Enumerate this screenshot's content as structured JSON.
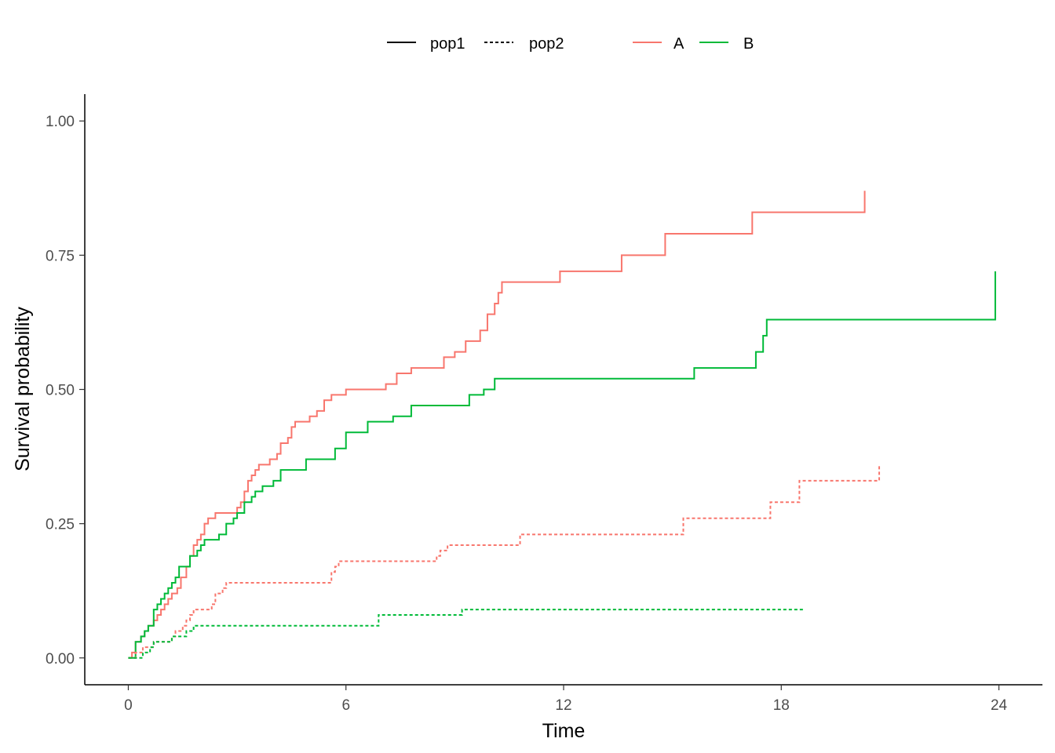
{
  "chart_data": {
    "type": "line",
    "title": "",
    "xlabel": "Time",
    "ylabel": "Survival probability",
    "xlim": [
      -1.2,
      25.2
    ],
    "ylim": [
      -0.05,
      1.05
    ],
    "x_ticks": [
      0,
      6,
      12,
      18,
      24
    ],
    "x_tick_labels": [
      "0",
      "6",
      "12",
      "18",
      "24"
    ],
    "y_ticks": [
      0,
      0.25,
      0.5,
      0.75,
      1.0
    ],
    "y_tick_labels": [
      "0.00",
      "0.25",
      "0.50",
      "0.75",
      "1.00"
    ],
    "grid": false,
    "legend": {
      "position": "top",
      "linetype_entries": [
        {
          "label": "pop1",
          "dash": "solid"
        },
        {
          "label": "pop2",
          "dash": "dotted"
        }
      ],
      "color_entries": [
        {
          "label": "A",
          "color": "#F8766D"
        },
        {
          "label": "B",
          "color": "#00BA38"
        }
      ]
    },
    "series": [
      {
        "group": "A",
        "population": "pop1",
        "color": "#F8766D",
        "dash": "solid",
        "points": [
          [
            0,
            0
          ],
          [
            0.1,
            0.01
          ],
          [
            0.2,
            0.03
          ],
          [
            0.35,
            0.04
          ],
          [
            0.45,
            0.05
          ],
          [
            0.55,
            0.06
          ],
          [
            0.7,
            0.07
          ],
          [
            0.8,
            0.08
          ],
          [
            0.9,
            0.09
          ],
          [
            1.0,
            0.1
          ],
          [
            1.1,
            0.11
          ],
          [
            1.2,
            0.12
          ],
          [
            1.35,
            0.13
          ],
          [
            1.45,
            0.15
          ],
          [
            1.6,
            0.17
          ],
          [
            1.7,
            0.19
          ],
          [
            1.8,
            0.21
          ],
          [
            1.9,
            0.22
          ],
          [
            2.0,
            0.23
          ],
          [
            2.1,
            0.25
          ],
          [
            2.2,
            0.26
          ],
          [
            2.4,
            0.27
          ],
          [
            3.0,
            0.28
          ],
          [
            3.1,
            0.29
          ],
          [
            3.2,
            0.31
          ],
          [
            3.3,
            0.33
          ],
          [
            3.4,
            0.34
          ],
          [
            3.5,
            0.35
          ],
          [
            3.6,
            0.36
          ],
          [
            3.9,
            0.37
          ],
          [
            4.1,
            0.38
          ],
          [
            4.2,
            0.4
          ],
          [
            4.4,
            0.41
          ],
          [
            4.5,
            0.43
          ],
          [
            4.6,
            0.44
          ],
          [
            5.0,
            0.45
          ],
          [
            5.2,
            0.46
          ],
          [
            5.4,
            0.48
          ],
          [
            5.6,
            0.49
          ],
          [
            6.0,
            0.5
          ],
          [
            7.1,
            0.51
          ],
          [
            7.4,
            0.53
          ],
          [
            7.8,
            0.54
          ],
          [
            8.7,
            0.56
          ],
          [
            9.0,
            0.57
          ],
          [
            9.3,
            0.59
          ],
          [
            9.7,
            0.61
          ],
          [
            9.9,
            0.64
          ],
          [
            10.1,
            0.66
          ],
          [
            10.2,
            0.68
          ],
          [
            10.3,
            0.7
          ],
          [
            11.9,
            0.72
          ],
          [
            13.6,
            0.75
          ],
          [
            14.8,
            0.79
          ],
          [
            17.2,
            0.83
          ],
          [
            20.3,
            0.83
          ],
          [
            20.3,
            0.87
          ]
        ]
      },
      {
        "group": "B",
        "population": "pop1",
        "color": "#00BA38",
        "dash": "solid",
        "points": [
          [
            0,
            0
          ],
          [
            0.2,
            0.03
          ],
          [
            0.35,
            0.04
          ],
          [
            0.45,
            0.05
          ],
          [
            0.55,
            0.06
          ],
          [
            0.7,
            0.09
          ],
          [
            0.8,
            0.1
          ],
          [
            0.9,
            0.11
          ],
          [
            1.0,
            0.12
          ],
          [
            1.1,
            0.13
          ],
          [
            1.2,
            0.14
          ],
          [
            1.3,
            0.15
          ],
          [
            1.4,
            0.17
          ],
          [
            1.7,
            0.19
          ],
          [
            1.9,
            0.2
          ],
          [
            2.0,
            0.21
          ],
          [
            2.1,
            0.22
          ],
          [
            2.5,
            0.23
          ],
          [
            2.7,
            0.25
          ],
          [
            2.9,
            0.26
          ],
          [
            3.0,
            0.27
          ],
          [
            3.2,
            0.29
          ],
          [
            3.4,
            0.3
          ],
          [
            3.5,
            0.31
          ],
          [
            3.7,
            0.32
          ],
          [
            4.0,
            0.33
          ],
          [
            4.2,
            0.35
          ],
          [
            4.9,
            0.37
          ],
          [
            5.7,
            0.39
          ],
          [
            6.0,
            0.42
          ],
          [
            6.6,
            0.44
          ],
          [
            7.3,
            0.45
          ],
          [
            7.8,
            0.47
          ],
          [
            9.4,
            0.49
          ],
          [
            9.8,
            0.5
          ],
          [
            10.1,
            0.52
          ],
          [
            15.6,
            0.54
          ],
          [
            17.3,
            0.57
          ],
          [
            17.5,
            0.6
          ],
          [
            17.6,
            0.63
          ],
          [
            23.9,
            0.63
          ],
          [
            23.9,
            0.72
          ]
        ]
      },
      {
        "group": "A",
        "population": "pop2",
        "color": "#F8766D",
        "dash": "dotted",
        "points": [
          [
            0,
            0
          ],
          [
            0.2,
            0.01
          ],
          [
            0.4,
            0.02
          ],
          [
            0.6,
            0.02
          ],
          [
            0.7,
            0.03
          ],
          [
            1.2,
            0.04
          ],
          [
            1.3,
            0.05
          ],
          [
            1.5,
            0.06
          ],
          [
            1.6,
            0.07
          ],
          [
            1.7,
            0.08
          ],
          [
            1.8,
            0.09
          ],
          [
            2.0,
            0.09
          ],
          [
            2.3,
            0.1
          ],
          [
            2.4,
            0.12
          ],
          [
            2.6,
            0.13
          ],
          [
            2.7,
            0.14
          ],
          [
            5.6,
            0.16
          ],
          [
            5.7,
            0.17
          ],
          [
            5.8,
            0.18
          ],
          [
            6.0,
            0.18
          ],
          [
            8.5,
            0.19
          ],
          [
            8.6,
            0.2
          ],
          [
            8.8,
            0.21
          ],
          [
            10.8,
            0.23
          ],
          [
            15.3,
            0.26
          ],
          [
            17.7,
            0.29
          ],
          [
            18.5,
            0.33
          ],
          [
            20.7,
            0.33
          ],
          [
            20.7,
            0.36
          ]
        ]
      },
      {
        "group": "B",
        "population": "pop2",
        "color": "#00BA38",
        "dash": "dotted",
        "points": [
          [
            0,
            0
          ],
          [
            0.4,
            0.01
          ],
          [
            0.6,
            0.02
          ],
          [
            0.7,
            0.03
          ],
          [
            1.2,
            0.04
          ],
          [
            1.6,
            0.05
          ],
          [
            1.8,
            0.06
          ],
          [
            1.9,
            0.06
          ],
          [
            6.9,
            0.08
          ],
          [
            9.2,
            0.09
          ],
          [
            18.6,
            0.09
          ]
        ]
      }
    ]
  }
}
